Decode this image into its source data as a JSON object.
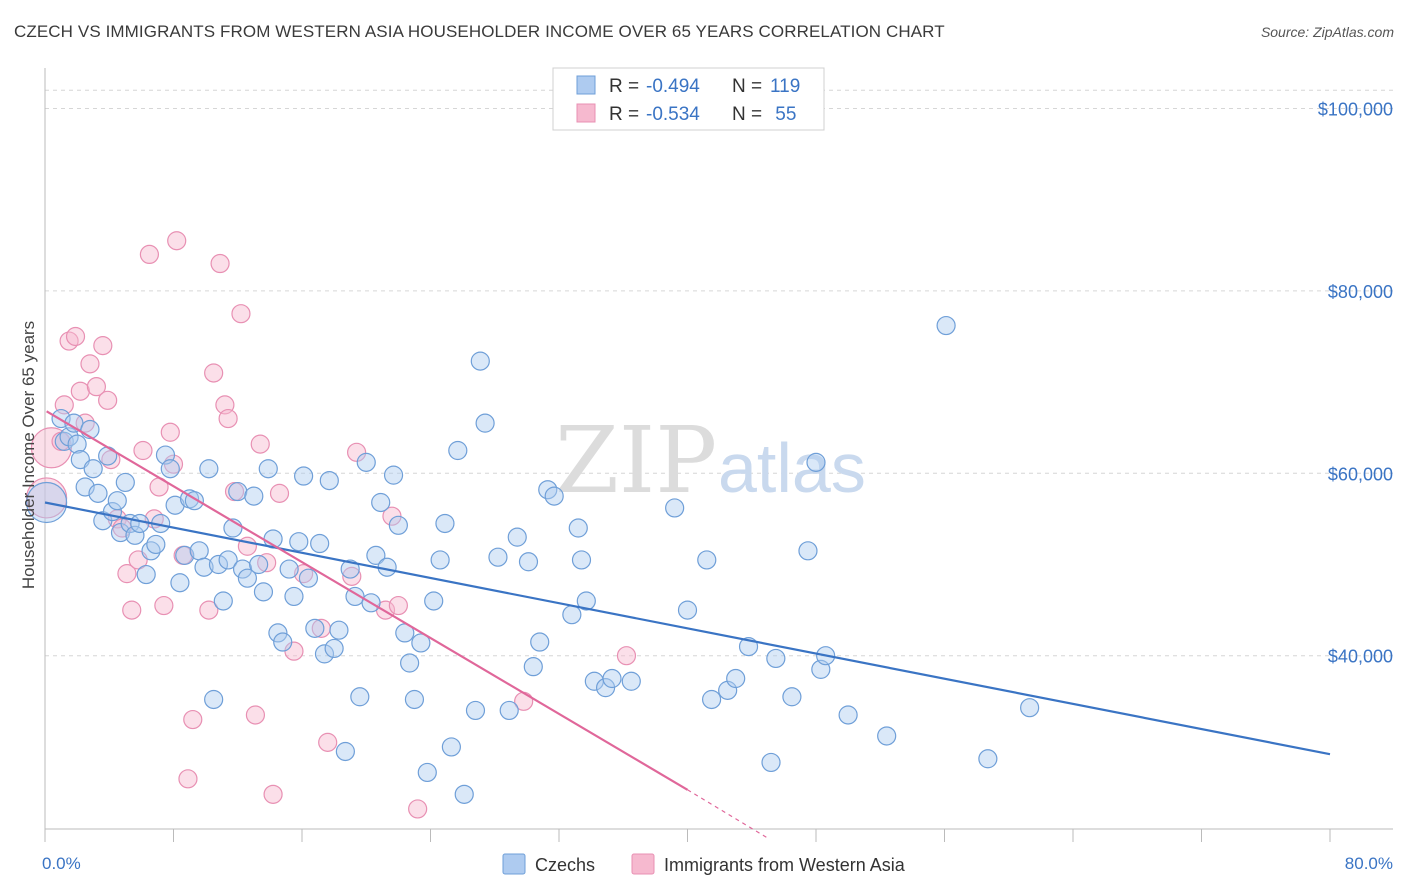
{
  "title": "CZECH VS IMMIGRANTS FROM WESTERN ASIA HOUSEHOLDER INCOME OVER 65 YEARS CORRELATION CHART",
  "source": "Source: ZipAtlas.com",
  "watermark": {
    "zip": "ZIP",
    "atlas": "atlas"
  },
  "colors": {
    "blue": "#3a74c4",
    "blue_fill": "#aecbf0",
    "pink": "#e0679a",
    "pink_fill": "#f6b9cf",
    "grid": "#d6d6d6"
  },
  "legend": {
    "rows": [
      {
        "r_label": "R =",
        "r_value": "-0.494",
        "n_label": "N =",
        "n_value": "119"
      },
      {
        "r_label": "R =",
        "r_value": "-0.534",
        "n_label": "N =",
        "n_value": " 55"
      }
    ]
  },
  "bottom_legend": [
    "Czechs",
    "Immigrants from Western Asia"
  ],
  "chart_data": {
    "type": "scatter",
    "title": "CZECH VS IMMIGRANTS FROM WESTERN ASIA HOUSEHOLDER INCOME OVER 65 YEARS CORRELATION CHART",
    "xlabel": "",
    "ylabel": "Householder Income Over 65 years",
    "xlim": [
      0,
      80
    ],
    "ylim": [
      21000,
      104000
    ],
    "x_tick_labels": [
      {
        "value": 0,
        "label": "0.0%"
      },
      {
        "value": 80,
        "label": "80.0%"
      }
    ],
    "y_ticks": [
      {
        "value": 40000,
        "label": "$40,000"
      },
      {
        "value": 60000,
        "label": "$60,000"
      },
      {
        "value": 80000,
        "label": "$80,000"
      },
      {
        "value": 100000,
        "label": "$100,000"
      }
    ],
    "series": [
      {
        "name": "Czechs",
        "R": -0.494,
        "N": 119,
        "trend": {
          "x": [
            0,
            80
          ],
          "y": [
            56800,
            29200
          ]
        },
        "points": [
          [
            0.1,
            56.8
          ],
          [
            1,
            66
          ],
          [
            1.2,
            63.5
          ],
          [
            1.5,
            64
          ],
          [
            1.8,
            65.5
          ],
          [
            2,
            63.2
          ],
          [
            2.2,
            61.5
          ],
          [
            2.5,
            58.5
          ],
          [
            2.8,
            64.8
          ],
          [
            3,
            60.5
          ],
          [
            3.3,
            57.8
          ],
          [
            3.6,
            54.8
          ],
          [
            3.9,
            61.9
          ],
          [
            4.2,
            55.8
          ],
          [
            4.5,
            57
          ],
          [
            4.7,
            53.5
          ],
          [
            5,
            59
          ],
          [
            5.3,
            54.5
          ],
          [
            5.6,
            53.2
          ],
          [
            5.9,
            54.5
          ],
          [
            6.3,
            48.9
          ],
          [
            6.6,
            51.5
          ],
          [
            6.9,
            52.2
          ],
          [
            7.2,
            54.5
          ],
          [
            7.5,
            62
          ],
          [
            7.8,
            60.5
          ],
          [
            8.1,
            56.5
          ],
          [
            8.4,
            48
          ],
          [
            8.7,
            51
          ],
          [
            9,
            57.2
          ],
          [
            9.3,
            57
          ],
          [
            9.6,
            51.5
          ],
          [
            9.9,
            49.7
          ],
          [
            10.2,
            60.5
          ],
          [
            10.5,
            35.2
          ],
          [
            10.8,
            50
          ],
          [
            11.1,
            46
          ],
          [
            11.4,
            50.5
          ],
          [
            11.7,
            54
          ],
          [
            12,
            58
          ],
          [
            12.3,
            49.5
          ],
          [
            12.6,
            48.5
          ],
          [
            13,
            57.5
          ],
          [
            13.3,
            50
          ],
          [
            13.6,
            47
          ],
          [
            13.9,
            60.5
          ],
          [
            14.2,
            52.8
          ],
          [
            14.5,
            42.5
          ],
          [
            14.8,
            41.5
          ],
          [
            15.2,
            49.5
          ],
          [
            15.5,
            46.5
          ],
          [
            15.8,
            52.5
          ],
          [
            16.1,
            59.7
          ],
          [
            16.4,
            48.5
          ],
          [
            16.8,
            43
          ],
          [
            17.1,
            52.3
          ],
          [
            17.4,
            40.2
          ],
          [
            17.7,
            59.2
          ],
          [
            18,
            40.8
          ],
          [
            18.3,
            42.8
          ],
          [
            18.7,
            29.5
          ],
          [
            19,
            49.5
          ],
          [
            19.3,
            46.5
          ],
          [
            19.6,
            35.5
          ],
          [
            20,
            61.2
          ],
          [
            20.3,
            45.8
          ],
          [
            20.6,
            51
          ],
          [
            20.9,
            56.8
          ],
          [
            21.3,
            49.7
          ],
          [
            21.7,
            59.8
          ],
          [
            22,
            54.3
          ],
          [
            22.4,
            42.5
          ],
          [
            22.7,
            39.2
          ],
          [
            23,
            35.2
          ],
          [
            23.4,
            41.4
          ],
          [
            23.8,
            27.2
          ],
          [
            24.2,
            46
          ],
          [
            24.6,
            50.5
          ],
          [
            24.9,
            54.5
          ],
          [
            25.3,
            30
          ],
          [
            25.7,
            62.5
          ],
          [
            26.1,
            24.8
          ],
          [
            26.8,
            34
          ],
          [
            27.1,
            72.3
          ],
          [
            27.4,
            65.5
          ],
          [
            28.2,
            50.8
          ],
          [
            28.9,
            34
          ],
          [
            29.4,
            53
          ],
          [
            30.1,
            50.3
          ],
          [
            30.4,
            38.8
          ],
          [
            30.8,
            41.5
          ],
          [
            31.3,
            58.2
          ],
          [
            31.7,
            57.5
          ],
          [
            32.8,
            44.5
          ],
          [
            33.2,
            54
          ],
          [
            33.4,
            50.5
          ],
          [
            33.7,
            46
          ],
          [
            34.2,
            37.2
          ],
          [
            34.9,
            36.5
          ],
          [
            35.3,
            37.5
          ],
          [
            36.5,
            37.2
          ],
          [
            39.2,
            56.2
          ],
          [
            40,
            45
          ],
          [
            41.2,
            50.5
          ],
          [
            41.5,
            35.2
          ],
          [
            42.5,
            36.2
          ],
          [
            43,
            37.5
          ],
          [
            43.8,
            41
          ],
          [
            45.2,
            28.3
          ],
          [
            45.5,
            39.7
          ],
          [
            46.5,
            35.5
          ],
          [
            47.5,
            51.5
          ],
          [
            48,
            61.2
          ],
          [
            48.3,
            38.5
          ],
          [
            48.6,
            40
          ],
          [
            50,
            33.5
          ],
          [
            52.4,
            31.2
          ],
          [
            56.1,
            76.2
          ],
          [
            58.7,
            28.7
          ],
          [
            61.3,
            34.3
          ]
        ]
      },
      {
        "name": "Immigrants from Western Asia",
        "R": -0.534,
        "N": 55,
        "trend": {
          "x": [
            0.1,
            40
          ],
          "y": [
            66800,
            25300
          ]
        },
        "trend_dashed": {
          "x": [
            40,
            45
          ],
          "y": [
            25300,
            20000
          ]
        },
        "points": [
          [
            0.1,
            57.3
          ],
          [
            0.4,
            62.8
          ],
          [
            1,
            63.5
          ],
          [
            1.2,
            67.5
          ],
          [
            1.5,
            74.5
          ],
          [
            1.9,
            75
          ],
          [
            2.2,
            69
          ],
          [
            2.5,
            65.5
          ],
          [
            2.8,
            72
          ],
          [
            3.2,
            69.5
          ],
          [
            3.6,
            74
          ],
          [
            3.9,
            68
          ],
          [
            4.1,
            61.5
          ],
          [
            4.5,
            55
          ],
          [
            4.8,
            54
          ],
          [
            5.1,
            49
          ],
          [
            5.4,
            45
          ],
          [
            5.8,
            50.5
          ],
          [
            6.1,
            62.5
          ],
          [
            6.5,
            84
          ],
          [
            6.8,
            55
          ],
          [
            7.1,
            58.5
          ],
          [
            7.4,
            45.5
          ],
          [
            7.8,
            64.5
          ],
          [
            8,
            61
          ],
          [
            8.2,
            85.5
          ],
          [
            8.6,
            51
          ],
          [
            8.9,
            26.5
          ],
          [
            9.2,
            33
          ],
          [
            10.2,
            45
          ],
          [
            10.5,
            71
          ],
          [
            10.9,
            83
          ],
          [
            11.2,
            67.5
          ],
          [
            11.4,
            66
          ],
          [
            11.8,
            58
          ],
          [
            12.2,
            77.5
          ],
          [
            12.6,
            52
          ],
          [
            13.1,
            33.5
          ],
          [
            13.4,
            63.2
          ],
          [
            13.8,
            50.2
          ],
          [
            14.2,
            24.8
          ],
          [
            14.6,
            57.8
          ],
          [
            15.5,
            40.5
          ],
          [
            16.1,
            49
          ],
          [
            17.2,
            43
          ],
          [
            17.6,
            30.5
          ],
          [
            19.1,
            48.7
          ],
          [
            19.4,
            62.3
          ],
          [
            21.2,
            45
          ],
          [
            21.6,
            55.3
          ],
          [
            22,
            45.5
          ],
          [
            23.2,
            23.2
          ],
          [
            29.8,
            35
          ],
          [
            36.2,
            40
          ]
        ]
      }
    ]
  }
}
